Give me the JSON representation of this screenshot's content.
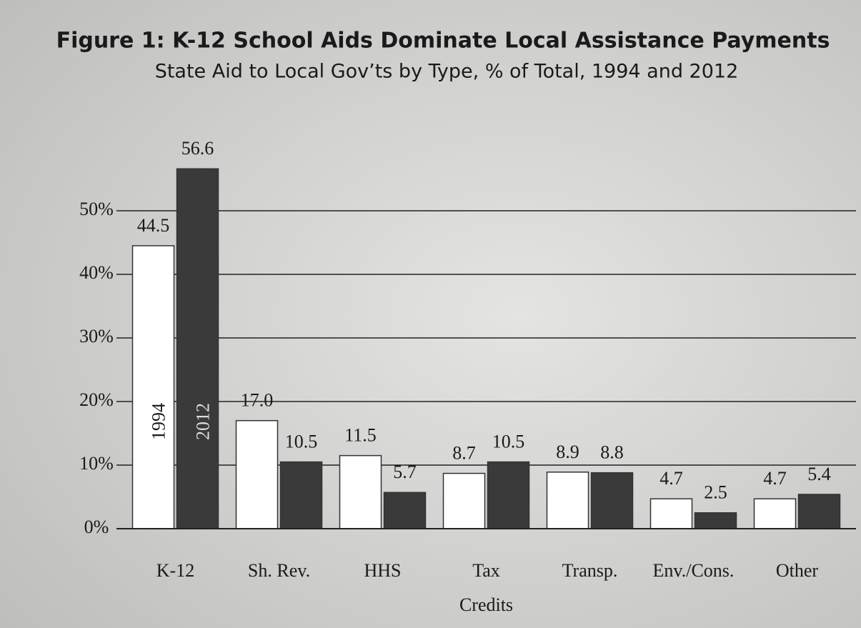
{
  "chart_data": {
    "type": "bar",
    "title": "Figure 1:  K-12 School Aids Dominate Local Assistance Payments",
    "subtitle": "State Aid to Local Gov’ts by Type, % of Total, 1994 and 2012",
    "categories": [
      "K-12",
      "Sh. Rev.",
      "HHS",
      [
        "Tax",
        "Credits"
      ],
      "Transp.",
      "Env./Cons.",
      "Other"
    ],
    "series": [
      {
        "name": "1994",
        "color": "#ffffff",
        "values": [
          44.5,
          17.0,
          11.5,
          8.7,
          8.9,
          4.7,
          4.7
        ],
        "value_labels": [
          "44.5",
          "17.0",
          "11.5",
          "8.7",
          "8.9",
          "4.7",
          "4.7"
        ]
      },
      {
        "name": "2012",
        "color": "#3a3a3a",
        "values": [
          56.6,
          10.5,
          5.7,
          10.5,
          8.8,
          2.5,
          5.4
        ],
        "value_labels": [
          "56.6",
          "10.5",
          "5.7",
          "10.5",
          "8.8",
          "2.5",
          "5.4"
        ]
      }
    ],
    "ylim": [
      0,
      60
    ],
    "yticks": [
      {
        "value": 0,
        "label": "0%"
      },
      {
        "value": 10,
        "label": "10%"
      },
      {
        "value": 20,
        "label": "20%"
      },
      {
        "value": 30,
        "label": "30%"
      },
      {
        "value": 40,
        "label": "40%"
      },
      {
        "value": 50,
        "label": "50%"
      }
    ],
    "grid": true
  }
}
